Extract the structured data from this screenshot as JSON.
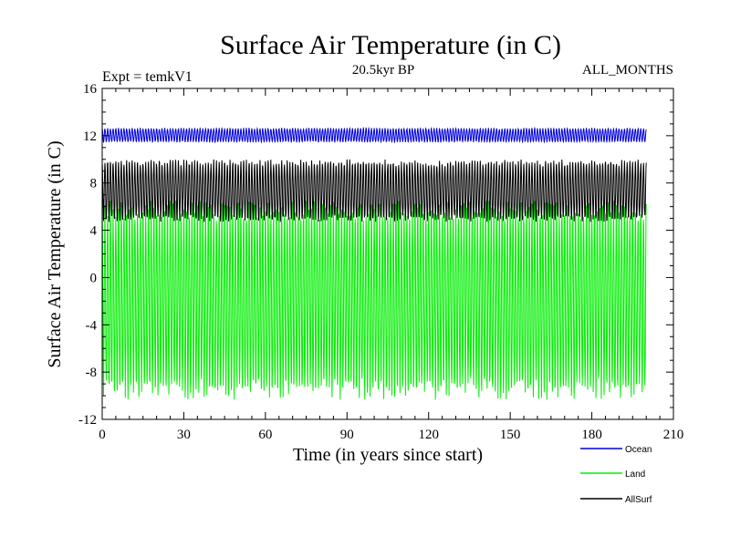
{
  "chart_data": {
    "type": "line",
    "title": "Surface Air Temperature (in C)",
    "subtitle_left": "Expt = temkV1",
    "subtitle_center": "20.5kyr BP",
    "subtitle_right": "ALL_MONTHS",
    "xlabel": "Time (in years since start)",
    "ylabel": "Surface Air Temperature (in C)",
    "xlim": [
      0,
      210
    ],
    "ylim": [
      -12,
      16
    ],
    "xticks": [
      0,
      30,
      60,
      90,
      120,
      150,
      180,
      210
    ],
    "yticks": [
      -12,
      -8,
      -4,
      0,
      4,
      8,
      12,
      16
    ],
    "xtick_labels": [
      "0",
      "30",
      "60",
      "90",
      "120",
      "150",
      "180",
      "210"
    ],
    "ytick_labels": [
      "-12",
      "-8",
      "-4",
      "0",
      "4",
      "8",
      "12",
      "16"
    ],
    "x_data_range": [
      0,
      200
    ],
    "months_per_year": 12,
    "legend_position": "bottom-right-outside",
    "series": [
      {
        "name": "Ocean",
        "color": "#0000dd",
        "seasonal_min": 11.5,
        "seasonal_max": 12.6
      },
      {
        "name": "AllSurf",
        "color": "#000000",
        "seasonal_min": 5.0,
        "seasonal_max": 9.7
      },
      {
        "name": "Land",
        "color": "#00ee00",
        "seasonal_min": -9.4,
        "seasonal_max": 5.6
      }
    ],
    "legend_order": [
      "Ocean",
      "Land",
      "AllSurf"
    ]
  }
}
